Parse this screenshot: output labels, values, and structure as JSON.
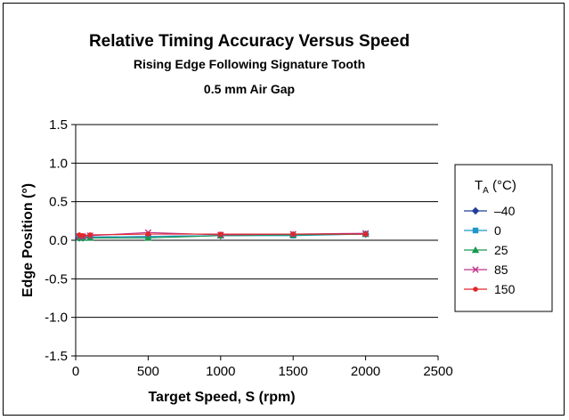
{
  "chart_data": {
    "type": "line",
    "title": "Relative Timing Accuracy Versus Speed",
    "subtitle": "Rising Edge Following Signature Tooth",
    "subtitle2": "0.5 mm Air Gap",
    "xlabel": "Target Speed, S (rpm)",
    "ylabel": "Edge Position (°)",
    "xlim": [
      0,
      2500
    ],
    "ylim": [
      -1.5,
      1.5
    ],
    "x_ticks": [
      "0",
      "500",
      "1000",
      "1500",
      "2000",
      "2500"
    ],
    "x_tick_values": [
      0,
      500,
      1000,
      1500,
      2000,
      2500
    ],
    "y_ticks": [
      "1.5",
      "1.0",
      "0.5",
      "0.0",
      "-0.5",
      "-1.0",
      "-1.5"
    ],
    "y_tick_values": [
      1.5,
      1.0,
      0.5,
      0.0,
      -0.5,
      -1.0,
      -1.5
    ],
    "grid": "horizontal",
    "legend": {
      "title_main": "T",
      "title_sub": "A",
      "title_unit": " (°C)",
      "placement": "right"
    },
    "series": [
      {
        "name": "–40",
        "color": "#1f3f9a",
        "marker": "diamond",
        "x": [
          25,
          50,
          100,
          500,
          1000,
          1500,
          2000
        ],
        "y": [
          0.03,
          0.03,
          0.04,
          0.05,
          0.06,
          0.07,
          0.08
        ]
      },
      {
        "name": "0",
        "color": "#1f96c8",
        "marker": "square",
        "x": [
          25,
          50,
          100,
          500,
          1000,
          1500,
          2000
        ],
        "y": [
          0.04,
          0.04,
          0.04,
          0.05,
          0.06,
          0.06,
          0.08
        ]
      },
      {
        "name": "25",
        "color": "#1a9850",
        "marker": "triangle",
        "x": [
          25,
          50,
          100,
          500,
          1000,
          1500,
          2000
        ],
        "y": [
          0.03,
          0.03,
          0.03,
          0.03,
          0.06,
          0.07,
          0.08
        ]
      },
      {
        "name": "85",
        "color": "#c0308c",
        "marker": "x",
        "x": [
          25,
          50,
          100,
          500,
          1000,
          1500,
          2000
        ],
        "y": [
          0.05,
          0.05,
          0.06,
          0.1,
          0.07,
          0.08,
          0.09
        ]
      },
      {
        "name": "150",
        "color": "#e0282a",
        "marker": "circle",
        "x": [
          25,
          50,
          100,
          500,
          1000,
          1500,
          2000
        ],
        "y": [
          0.07,
          0.06,
          0.07,
          0.08,
          0.08,
          0.08,
          0.08
        ]
      }
    ]
  }
}
